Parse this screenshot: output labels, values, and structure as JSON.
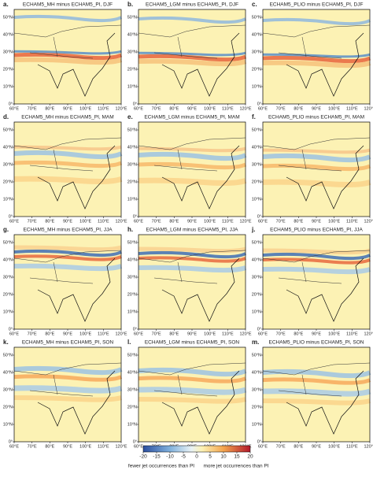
{
  "panels": [
    {
      "letter": "a.",
      "title": "ECHAM5_MH minus ECHAM5_PI, DJF"
    },
    {
      "letter": "b.",
      "title": "ECHAM5_LGM minus ECHAM5_PI, DJF"
    },
    {
      "letter": "c.",
      "title": "ECHAM5_PLIO minus ECHAM5_PI, DJF"
    },
    {
      "letter": "d.",
      "title": "ECHAM5_MH minus ECHAM5_PI, MAM"
    },
    {
      "letter": "e.",
      "title": "ECHAM5_LGM minus ECHAM5_PI, MAM"
    },
    {
      "letter": "f.",
      "title": "ECHAM5_PLIO minus ECHAM5_PI, MAM"
    },
    {
      "letter": "g.",
      "title": "ECHAM5_MH minus ECHAM5_PI, JJA"
    },
    {
      "letter": "h.",
      "title": "ECHAM5_LGM minus ECHAM5_PI, JJA"
    },
    {
      "letter": "j.",
      "title": "ECHAM5_PLIO minus ECHAM5_PI, JJA"
    },
    {
      "letter": "k.",
      "title": "ECHAM5_MH minus ECHAM5_PI, SON"
    },
    {
      "letter": "l.",
      "title": "ECHAM5_LGM minus ECHAM5_PI, SON"
    },
    {
      "letter": "m.",
      "title": "ECHAM5_PLIO minus ECHAM5_PI, SON"
    }
  ],
  "lat_ticks": [
    "0°",
    "10°N",
    "20°N",
    "30°N",
    "40°N",
    "50°N"
  ],
  "lon_ticks": [
    "60°E",
    "70°E",
    "80°E",
    "90°E",
    "100°E",
    "110°E",
    "120°E"
  ],
  "colorbar": {
    "range": [
      -20,
      20
    ],
    "ticks": [
      -20,
      -15,
      -10,
      -5,
      0,
      5,
      10,
      15,
      20
    ],
    "label_low": "fewer jet occurrences than PI",
    "label_high": "more jet occurrences than PI"
  }
}
